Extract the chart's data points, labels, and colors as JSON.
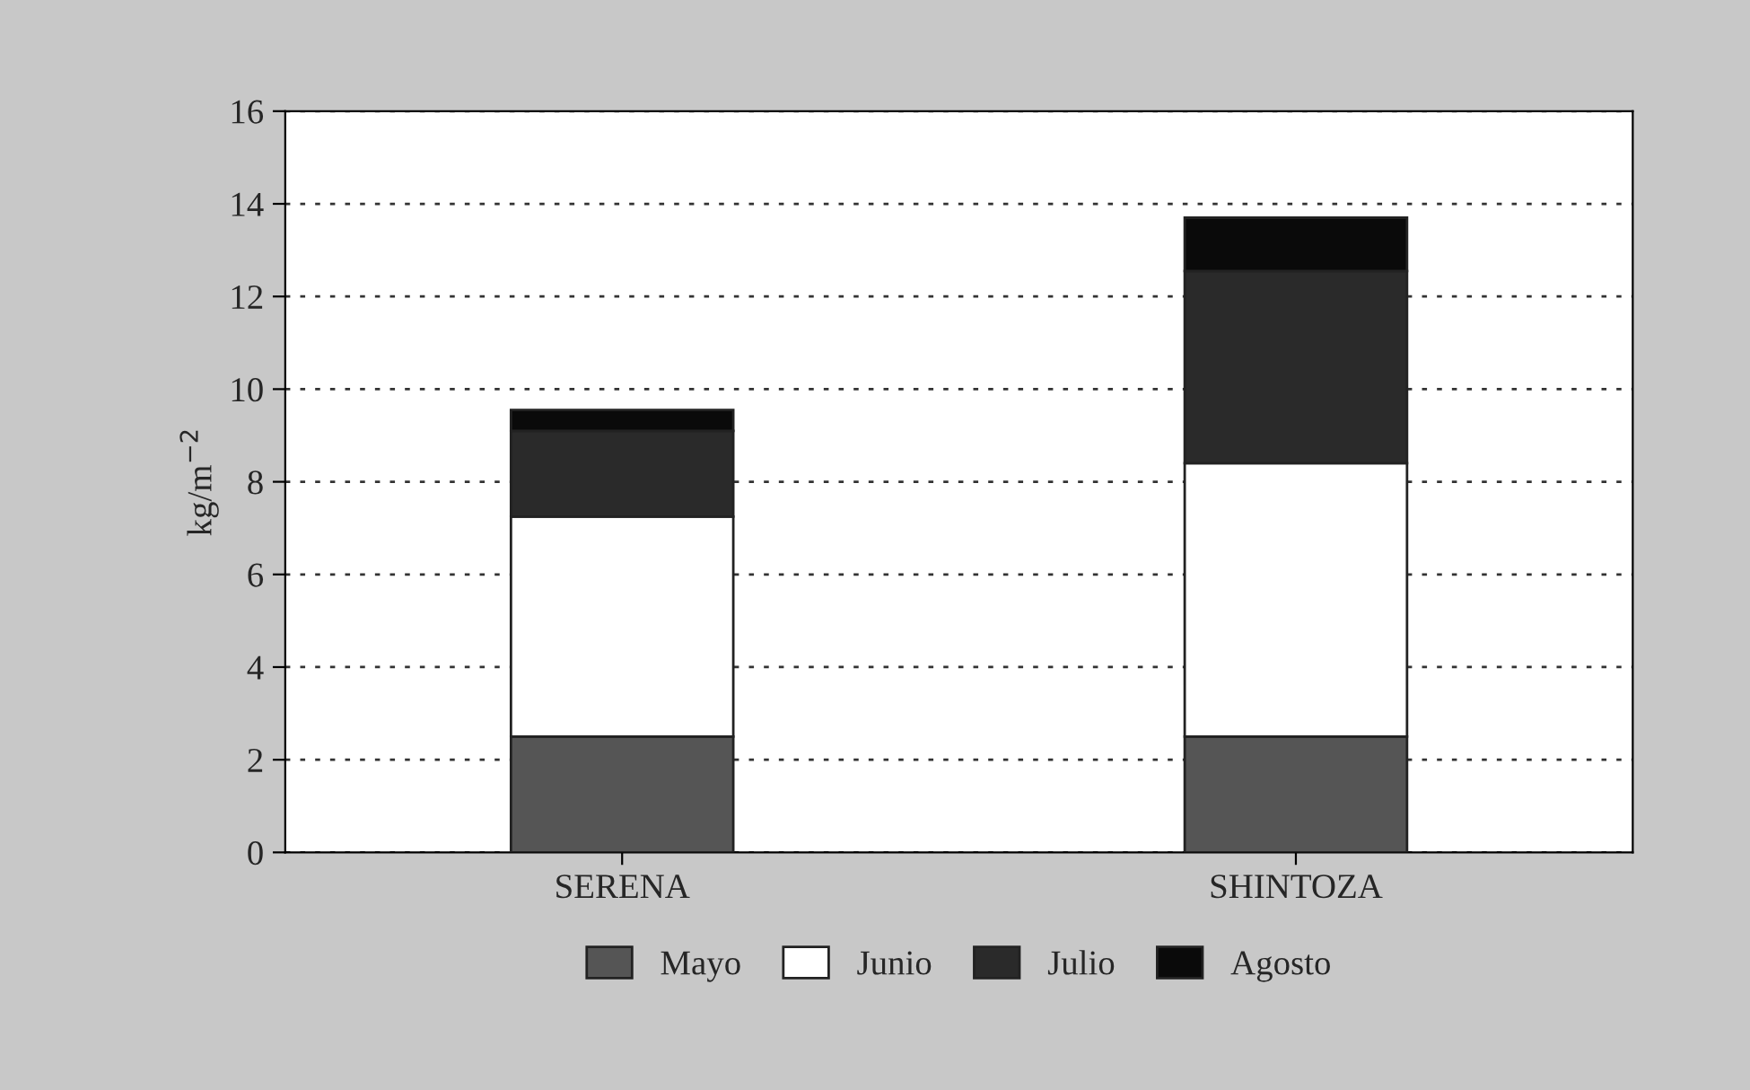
{
  "chart_data": {
    "type": "bar",
    "stacked": true,
    "ylabel": "kg/m$^{−2}$",
    "categories": [
      "SERENA",
      "SHINTOZA"
    ],
    "series": [
      {
        "name": "Mayo",
        "color": "#555555",
        "values": [
          2.5,
          2.5
        ]
      },
      {
        "name": "Junio",
        "color": "#ffffff",
        "values": [
          4.75,
          5.9
        ]
      },
      {
        "name": "Julio",
        "color": "#2a2a2a",
        "values": [
          1.85,
          4.15
        ]
      },
      {
        "name": "Agosto",
        "color": "#0a0a0a",
        "values": [
          0.45,
          1.15
        ]
      }
    ],
    "ylim": [
      0,
      16
    ],
    "yticks": [
      0,
      2,
      4,
      6,
      8,
      10,
      12,
      14,
      16
    ],
    "grid": "y",
    "legend": "bottom"
  }
}
